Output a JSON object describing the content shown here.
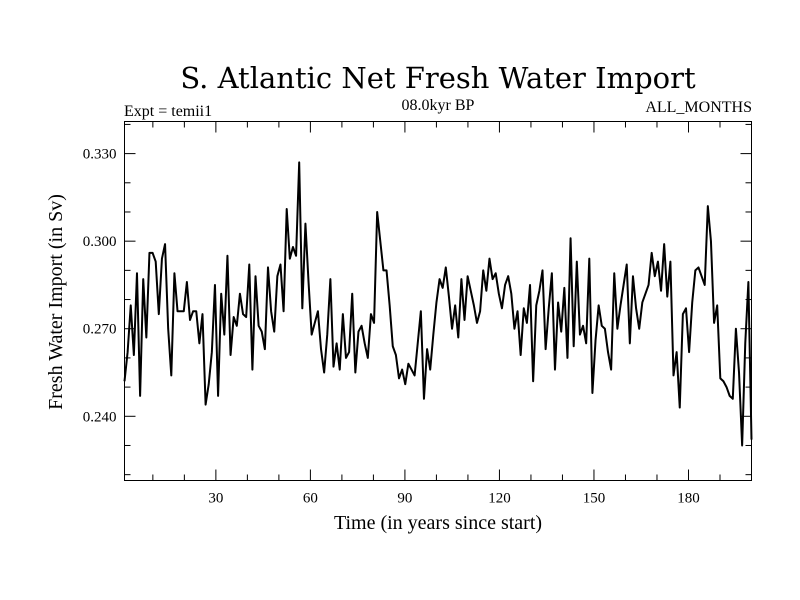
{
  "chart_data": {
    "type": "line",
    "title": "S. Atlantic Net Fresh Water Import",
    "subtitle_left": "Expt = temii1",
    "subtitle_center": "08.0kyr BP",
    "subtitle_right": "ALL_MONTHS",
    "xlabel": "Time (in years since start)",
    "ylabel": "Fresh Water Import (in Sv)",
    "xlim": [
      1,
      200
    ],
    "ylim": [
      0.218,
      0.341
    ],
    "xticks": [
      30,
      60,
      90,
      120,
      150,
      180
    ],
    "xtick_labels": [
      "30",
      "60",
      "90",
      "120",
      "150",
      "180"
    ],
    "yticks": [
      0.24,
      0.27,
      0.3,
      0.33
    ],
    "ytick_labels": [
      "0.240",
      "0.270",
      "0.300",
      "0.330"
    ],
    "grid": false,
    "series": [
      {
        "name": "fresh_water_import",
        "values": [
          0.252,
          0.262,
          0.278,
          0.261,
          0.289,
          0.247,
          0.287,
          0.267,
          0.296,
          0.296,
          0.293,
          0.275,
          0.294,
          0.299,
          0.27,
          0.254,
          0.289,
          0.276,
          0.276,
          0.276,
          0.286,
          0.273,
          0.276,
          0.276,
          0.265,
          0.275,
          0.244,
          0.251,
          0.262,
          0.285,
          0.247,
          0.282,
          0.268,
          0.295,
          0.261,
          0.274,
          0.271,
          0.282,
          0.275,
          0.274,
          0.292,
          0.256,
          0.288,
          0.271,
          0.269,
          0.263,
          0.291,
          0.276,
          0.269,
          0.288,
          0.292,
          0.276,
          0.311,
          0.294,
          0.298,
          0.295,
          0.327,
          0.277,
          0.306,
          0.286,
          0.268,
          0.272,
          0.276,
          0.263,
          0.255,
          0.268,
          0.287,
          0.257,
          0.265,
          0.256,
          0.275,
          0.26,
          0.262,
          0.282,
          0.255,
          0.269,
          0.271,
          0.265,
          0.26,
          0.275,
          0.272,
          0.31,
          0.3,
          0.29,
          0.29,
          0.278,
          0.264,
          0.261,
          0.253,
          0.256,
          0.251,
          0.258,
          0.256,
          0.254,
          0.265,
          0.276,
          0.246,
          0.263,
          0.256,
          0.268,
          0.279,
          0.287,
          0.284,
          0.291,
          0.281,
          0.27,
          0.278,
          0.267,
          0.287,
          0.273,
          0.288,
          0.283,
          0.278,
          0.272,
          0.276,
          0.29,
          0.283,
          0.294,
          0.287,
          0.289,
          0.282,
          0.277,
          0.285,
          0.288,
          0.282,
          0.27,
          0.276,
          0.261,
          0.277,
          0.272,
          0.285,
          0.252,
          0.278,
          0.283,
          0.29,
          0.263,
          0.277,
          0.289,
          0.256,
          0.279,
          0.269,
          0.284,
          0.26,
          0.301,
          0.264,
          0.293,
          0.268,
          0.271,
          0.265,
          0.294,
          0.248,
          0.266,
          0.278,
          0.271,
          0.27,
          0.262,
          0.256,
          0.289,
          0.27,
          0.278,
          0.285,
          0.292,
          0.265,
          0.288,
          0.277,
          0.27,
          0.279,
          0.282,
          0.285,
          0.296,
          0.288,
          0.293,
          0.283,
          0.299,
          0.281,
          0.293,
          0.254,
          0.262,
          0.243,
          0.275,
          0.277,
          0.262,
          0.279,
          0.29,
          0.291,
          0.288,
          0.285,
          0.312,
          0.3,
          0.272,
          0.278,
          0.253,
          0.252,
          0.25,
          0.247,
          0.246,
          0.27,
          0.255,
          0.23,
          0.265,
          0.286,
          0.232
        ]
      }
    ]
  }
}
